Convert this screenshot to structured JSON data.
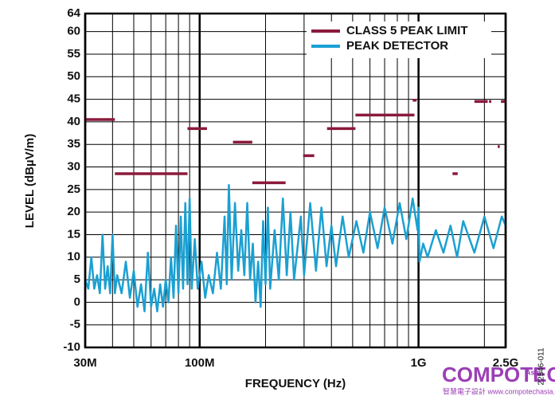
{
  "chart_data": {
    "type": "line",
    "xlabel": "FREQUENCY (Hz)",
    "ylabel": "LEVEL (dBµV/m)",
    "xscale": "log",
    "xlim": [
      30000000,
      2500000000
    ],
    "ylim": [
      -10,
      64
    ],
    "xticks": [
      {
        "value": 30000000,
        "label": "30M"
      },
      {
        "value": 100000000,
        "label": "100M"
      },
      {
        "value": 1000000000,
        "label": "1G"
      },
      {
        "value": 2500000000,
        "label": "2.5G"
      }
    ],
    "xminor": [
      40000000,
      50000000,
      60000000,
      70000000,
      80000000,
      90000000,
      200000000,
      300000000,
      400000000,
      500000000,
      600000000,
      700000000,
      800000000,
      900000000,
      2000000000
    ],
    "yticks": [
      -10,
      -5,
      0,
      5,
      10,
      15,
      20,
      25,
      30,
      35,
      40,
      45,
      50,
      55,
      60,
      64
    ],
    "grid": true,
    "legend": "upper right",
    "series": [
      {
        "name": "CLASS 5 PEAK LIMIT",
        "color": "#8b1a3c",
        "x": [
          30000000.0,
          41000000.0,
          41000000.0,
          41000000.0,
          88000000.0,
          88000000.0,
          88000000.0,
          108000000.0,
          120000000.0,
          142000000.0,
          174000000.0,
          174000000.0,
          174000000.0,
          247000000.0,
          270000000.0,
          297000000.0,
          334000000.0,
          360000000.0,
          382000000.0,
          515000000.0,
          515000000.0,
          515000000.0,
          958000000.0,
          950000000.0,
          940000000.0,
          980000000.0,
          1200000000.0,
          1430000000.0,
          1510000000.0,
          1600000000.0,
          1800000000.0,
          2070000000.0,
          2080000000.0,
          2100000000.0,
          2150000000.0,
          2200000000.0,
          2300000000.0,
          2350000000.0,
          2360000000.0,
          2380000000.0,
          2500000000.0
        ],
        "values": [
          40.5,
          40.5,
          null,
          28.5,
          28.5,
          null,
          38.5,
          38.5,
          null,
          35.5,
          35.5,
          null,
          26.5,
          26.5,
          null,
          32.5,
          32.5,
          null,
          38.5,
          38.5,
          null,
          41.5,
          41.5,
          null,
          44.8,
          44.8,
          null,
          28.5,
          28.5,
          null,
          44.5,
          44.5,
          null,
          44.5,
          44.5,
          null,
          34.5,
          34.5,
          null,
          44.5,
          44.5
        ]
      },
      {
        "name": "PEAK DETECTOR",
        "color": "#1ba0d2",
        "x": [
          30000000.0,
          31000000.0,
          32000000.0,
          33000000.0,
          34000000.0,
          35000000.0,
          36000000.0,
          37000000.0,
          38000000.0,
          39000000.0,
          40000000.0,
          41000000.0,
          42000000.0,
          44000000.0,
          46000000.0,
          48000000.0,
          50000000.0,
          52000000.0,
          54000000.0,
          56000000.0,
          58000000.0,
          60000000.0,
          62000000.0,
          64000000.0,
          66000000.0,
          68000000.0,
          70000000.0,
          72000000.0,
          74000000.0,
          76000000.0,
          78000000.0,
          80000000.0,
          82000000.0,
          84000000.0,
          86000000.0,
          88000000.0,
          90000000.0,
          92000000.0,
          95000000.0,
          98000000.0,
          102000000.0,
          106000000.0,
          110000000.0,
          115000000.0,
          120000000.0,
          125000000.0,
          130000000.0,
          133000000.0,
          136000000.0,
          140000000.0,
          145000000.0,
          150000000.0,
          155000000.0,
          160000000.0,
          165000000.0,
          170000000.0,
          175000000.0,
          180000000.0,
          185000000.0,
          190000000.0,
          195000000.0,
          200000000.0,
          205000000.0,
          210000000.0,
          220000000.0,
          230000000.0,
          240000000.0,
          250000000.0,
          260000000.0,
          270000000.0,
          290000000.0,
          300000000.0,
          320000000.0,
          340000000.0,
          360000000.0,
          380000000.0,
          400000000.0,
          420000000.0,
          450000000.0,
          480000000.0,
          520000000.0,
          560000000.0,
          600000000.0,
          650000000.0,
          700000000.0,
          760000000.0,
          820000000.0,
          880000000.0,
          940000000.0,
          990000000.0,
          1000000000.0,
          1010000000.0,
          1050000000.0,
          1100000000.0,
          1200000000.0,
          1300000000.0,
          1400000000.0,
          1500000000.0,
          1600000000.0,
          1800000000.0,
          2000000000.0,
          2200000000.0,
          2400000000.0,
          2500000000.0
        ],
        "values": [
          5,
          3,
          10,
          3,
          6,
          2,
          15,
          3,
          8,
          2,
          15,
          2,
          6,
          2,
          9,
          1,
          7,
          -1,
          4,
          -2,
          11,
          -1,
          3,
          -2,
          4,
          -1,
          5,
          0,
          10,
          1,
          17,
          2,
          19,
          3,
          22,
          4,
          23,
          3,
          14,
          3,
          9,
          1,
          6,
          2,
          11,
          3,
          19,
          4,
          26,
          5,
          22,
          7,
          16,
          6,
          22,
          5,
          13,
          0,
          9,
          -1,
          18,
          4,
          21,
          3,
          16,
          5,
          23,
          6,
          20,
          5,
          19,
          6,
          22,
          7,
          21,
          8,
          17,
          8,
          19,
          10,
          18,
          11,
          20,
          12,
          21,
          13,
          22,
          14,
          23,
          16,
          21,
          9,
          13,
          10,
          16,
          11,
          17,
          10,
          18,
          11,
          19,
          12,
          19,
          17
        ]
      }
    ]
  },
  "watermark": {
    "brand": "COMPOTECH",
    "region": "Asia",
    "tagline": "智慧電子設計 www.compotechasia.com",
    "figure_id": "22546-011"
  }
}
